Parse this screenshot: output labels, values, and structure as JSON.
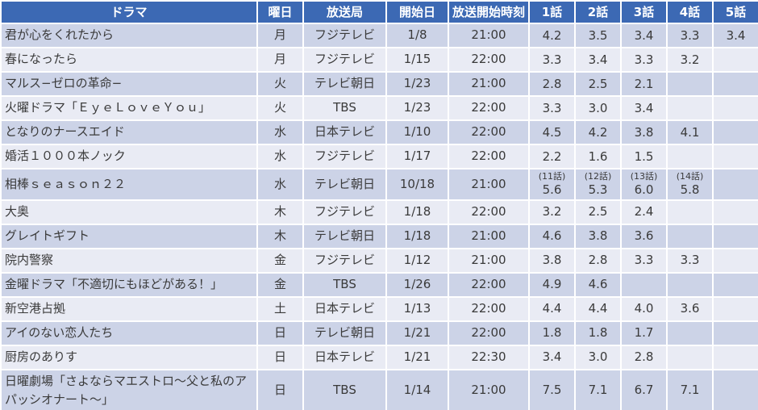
{
  "colors": {
    "header_bg": "#3c69b4",
    "header_text": "#ffffff",
    "band_dark": "#ccd3e7",
    "band_light": "#e9ebf4",
    "gridline": "#ffffff",
    "body_text": "#3a3a3a"
  },
  "chart_data": {
    "type": "table",
    "headers": [
      "ドラマ",
      "曜日",
      "放送局",
      "開始日",
      "放送開始時刻",
      "1話",
      "2話",
      "3話",
      "4話",
      "5話"
    ],
    "rows": [
      {
        "title": "君が心をくれたから",
        "day": "月",
        "station": "フジテレビ",
        "start_date": "1/8",
        "start_time": "21:00",
        "episodes": [
          {
            "note": "",
            "value": "4.2"
          },
          {
            "note": "",
            "value": "3.5"
          },
          {
            "note": "",
            "value": "3.4"
          },
          {
            "note": "",
            "value": "3.3"
          },
          {
            "note": "",
            "value": "3.4"
          }
        ]
      },
      {
        "title": "春になったら",
        "day": "月",
        "station": "フジテレビ",
        "start_date": "1/15",
        "start_time": "22:00",
        "episodes": [
          {
            "note": "",
            "value": "3.3"
          },
          {
            "note": "",
            "value": "3.4"
          },
          {
            "note": "",
            "value": "3.3"
          },
          {
            "note": "",
            "value": "3.2"
          },
          {
            "note": "",
            "value": ""
          }
        ]
      },
      {
        "title": "マルス−ゼロの革命−",
        "day": "火",
        "station": "テレビ朝日",
        "start_date": "1/23",
        "start_time": "21:00",
        "episodes": [
          {
            "note": "",
            "value": "2.8"
          },
          {
            "note": "",
            "value": "2.5"
          },
          {
            "note": "",
            "value": "2.1"
          },
          {
            "note": "",
            "value": ""
          },
          {
            "note": "",
            "value": ""
          }
        ]
      },
      {
        "title": "火曜ドラマ「ＥｙｅＬｏｖｅＹｏｕ」",
        "day": "火",
        "station": "TBS",
        "start_date": "1/23",
        "start_time": "22:00",
        "episodes": [
          {
            "note": "",
            "value": "3.3"
          },
          {
            "note": "",
            "value": "3.0"
          },
          {
            "note": "",
            "value": "3.4"
          },
          {
            "note": "",
            "value": ""
          },
          {
            "note": "",
            "value": ""
          }
        ]
      },
      {
        "title": "となりのナースエイド",
        "day": "水",
        "station": "日本テレビ",
        "start_date": "1/10",
        "start_time": "22:00",
        "episodes": [
          {
            "note": "",
            "value": "4.5"
          },
          {
            "note": "",
            "value": "4.2"
          },
          {
            "note": "",
            "value": "3.8"
          },
          {
            "note": "",
            "value": "4.1"
          },
          {
            "note": "",
            "value": ""
          }
        ]
      },
      {
        "title": "婚活１０００本ノック",
        "day": "水",
        "station": "フジテレビ",
        "start_date": "1/17",
        "start_time": "22:00",
        "episodes": [
          {
            "note": "",
            "value": "2.2"
          },
          {
            "note": "",
            "value": "1.6"
          },
          {
            "note": "",
            "value": "1.5"
          },
          {
            "note": "",
            "value": ""
          },
          {
            "note": "",
            "value": ""
          }
        ]
      },
      {
        "title": "相棒ｓｅａｓｏｎ２２",
        "day": "水",
        "station": "テレビ朝日",
        "start_date": "10/18",
        "start_time": "21:00",
        "episodes": [
          {
            "note": "(11話)",
            "value": "5.6"
          },
          {
            "note": "(12話)",
            "value": "5.3"
          },
          {
            "note": "(13話)",
            "value": "6.0"
          },
          {
            "note": "(14話)",
            "value": "5.8"
          },
          {
            "note": "",
            "value": ""
          }
        ]
      },
      {
        "title": "大奥",
        "day": "木",
        "station": "フジテレビ",
        "start_date": "1/18",
        "start_time": "22:00",
        "episodes": [
          {
            "note": "",
            "value": "3.2"
          },
          {
            "note": "",
            "value": "2.5"
          },
          {
            "note": "",
            "value": "2.4"
          },
          {
            "note": "",
            "value": ""
          },
          {
            "note": "",
            "value": ""
          }
        ]
      },
      {
        "title": "グレイトギフト",
        "day": "木",
        "station": "テレビ朝日",
        "start_date": "1/18",
        "start_time": "21:00",
        "episodes": [
          {
            "note": "",
            "value": "4.6"
          },
          {
            "note": "",
            "value": "3.8"
          },
          {
            "note": "",
            "value": "3.6"
          },
          {
            "note": "",
            "value": ""
          },
          {
            "note": "",
            "value": ""
          }
        ]
      },
      {
        "title": "院内警察",
        "day": "金",
        "station": "フジテレビ",
        "start_date": "1/12",
        "start_time": "21:00",
        "episodes": [
          {
            "note": "",
            "value": "3.8"
          },
          {
            "note": "",
            "value": "2.8"
          },
          {
            "note": "",
            "value": "3.3"
          },
          {
            "note": "",
            "value": "3.3"
          },
          {
            "note": "",
            "value": ""
          }
        ]
      },
      {
        "title": "金曜ドラマ「不適切にもほどがある！」",
        "day": "金",
        "station": "TBS",
        "start_date": "1/26",
        "start_time": "22:00",
        "episodes": [
          {
            "note": "",
            "value": "4.9"
          },
          {
            "note": "",
            "value": "4.6"
          },
          {
            "note": "",
            "value": ""
          },
          {
            "note": "",
            "value": ""
          },
          {
            "note": "",
            "value": ""
          }
        ]
      },
      {
        "title": "新空港占拠",
        "day": "土",
        "station": "日本テレビ",
        "start_date": "1/13",
        "start_time": "22:00",
        "episodes": [
          {
            "note": "",
            "value": "4.4"
          },
          {
            "note": "",
            "value": "4.4"
          },
          {
            "note": "",
            "value": "4.0"
          },
          {
            "note": "",
            "value": "3.6"
          },
          {
            "note": "",
            "value": ""
          }
        ]
      },
      {
        "title": "アイのない恋人たち",
        "day": "日",
        "station": "テレビ朝日",
        "start_date": "1/21",
        "start_time": "22:00",
        "episodes": [
          {
            "note": "",
            "value": "1.8"
          },
          {
            "note": "",
            "value": "1.8"
          },
          {
            "note": "",
            "value": "1.7"
          },
          {
            "note": "",
            "value": ""
          },
          {
            "note": "",
            "value": ""
          }
        ]
      },
      {
        "title": "厨房のありす",
        "day": "日",
        "station": "日本テレビ",
        "start_date": "1/21",
        "start_time": "22:30",
        "episodes": [
          {
            "note": "",
            "value": "3.4"
          },
          {
            "note": "",
            "value": "3.0"
          },
          {
            "note": "",
            "value": "2.8"
          },
          {
            "note": "",
            "value": ""
          },
          {
            "note": "",
            "value": ""
          }
        ]
      },
      {
        "title": "日曜劇場「さよならマエストロ～父と私のアパッシオナート～」",
        "day": "日",
        "station": "TBS",
        "start_date": "1/14",
        "start_time": "21:00",
        "episodes": [
          {
            "note": "",
            "value": "7.5"
          },
          {
            "note": "",
            "value": "7.1"
          },
          {
            "note": "",
            "value": "6.7"
          },
          {
            "note": "",
            "value": "7.1"
          },
          {
            "note": "",
            "value": ""
          }
        ]
      }
    ]
  }
}
